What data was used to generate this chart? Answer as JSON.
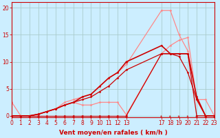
{
  "background_color": "#cceeff",
  "grid_color": "#aacccc",
  "xlabel": "Vent moyen/en rafales ( km/h )",
  "xlim": [
    0,
    23
  ],
  "ylim": [
    -0.3,
    21
  ],
  "yticks": [
    0,
    5,
    10,
    15,
    20
  ],
  "xtick_labels": [
    "0",
    "1",
    "2",
    "3",
    "4",
    "5",
    "6",
    "7",
    "8",
    "9",
    "10",
    "11",
    "12",
    "13",
    "17",
    "18",
    "19",
    "20",
    "21",
    "22",
    "23"
  ],
  "xtick_pos": [
    0,
    1,
    2,
    3,
    4,
    5,
    6,
    7,
    8,
    9,
    10,
    11,
    12,
    13,
    17,
    18,
    19,
    20,
    21,
    22,
    23
  ],
  "series": [
    {
      "x": [
        0,
        1,
        2,
        3,
        4,
        5,
        6,
        7,
        8,
        9,
        10,
        11,
        12,
        13,
        17,
        18,
        19,
        20,
        21,
        22,
        23
      ],
      "y": [
        0,
        0,
        0,
        0,
        0,
        0,
        0,
        0,
        0,
        0,
        0,
        0,
        0,
        0,
        11.5,
        11.5,
        11.5,
        11.5,
        0,
        0,
        0
      ],
      "color": "#cc0000",
      "lw": 0.9,
      "marker": "D",
      "ms": 1.5,
      "zorder": 3
    },
    {
      "x": [
        0,
        1,
        2,
        3,
        4,
        5,
        6,
        7,
        8,
        9,
        10,
        11,
        12,
        13,
        17,
        18,
        19,
        20,
        21,
        22,
        23
      ],
      "y": [
        0,
        0,
        0,
        0.3,
        0.8,
        1.3,
        2.0,
        2.5,
        3.0,
        3.5,
        4.5,
        5.5,
        7.0,
        8.5,
        11.5,
        11.5,
        11.0,
        8.0,
        3.0,
        0,
        0
      ],
      "color": "#cc0000",
      "lw": 0.9,
      "marker": "D",
      "ms": 1.5,
      "zorder": 3
    },
    {
      "x": [
        0,
        1,
        2,
        3,
        4,
        5,
        6,
        7,
        8,
        9,
        10,
        11,
        12,
        13,
        17,
        18,
        19,
        20,
        21,
        22,
        23
      ],
      "y": [
        0,
        0,
        0,
        0.3,
        0.8,
        1.3,
        2.0,
        2.5,
        3.5,
        4.0,
        5.5,
        7.0,
        8.0,
        10.0,
        13.0,
        11.5,
        11.5,
        11.5,
        3.5,
        0,
        0
      ],
      "color": "#cc0000",
      "lw": 1.2,
      "marker": "D",
      "ms": 1.5,
      "zorder": 3
    },
    {
      "x": [
        0,
        1,
        2,
        3,
        4,
        5,
        6,
        7,
        8,
        9,
        10,
        11,
        12,
        13,
        17,
        18,
        19,
        20,
        21,
        22,
        23
      ],
      "y": [
        2.5,
        0,
        0,
        0.3,
        0.8,
        1.3,
        2.0,
        2.5,
        2.0,
        2.0,
        2.5,
        2.5,
        2.5,
        0.2,
        11.5,
        13.0,
        14.0,
        14.5,
        3.0,
        3.0,
        0
      ],
      "color": "#ff8888",
      "lw": 0.9,
      "marker": "D",
      "ms": 1.5,
      "zorder": 2
    },
    {
      "x": [
        0,
        1,
        2,
        3,
        4,
        5,
        6,
        7,
        8,
        9,
        10,
        11,
        12,
        13,
        17,
        18,
        19,
        20,
        21,
        22,
        23
      ],
      "y": [
        0,
        0,
        0,
        0.3,
        0.8,
        1.3,
        2.5,
        3.0,
        3.5,
        4.0,
        5.5,
        7.0,
        8.0,
        9.5,
        19.5,
        19.5,
        15.0,
        12.0,
        3.0,
        0,
        0
      ],
      "color": "#ff8888",
      "lw": 0.9,
      "marker": "D",
      "ms": 1.5,
      "zorder": 2
    }
  ],
  "xlabel_color": "#cc0000",
  "xlabel_fontsize": 6.5,
  "tick_labelsize": 5.5,
  "ylabel_color": "#cc0000",
  "ylabel_labelsize": 6,
  "spine_color": "#cc0000"
}
